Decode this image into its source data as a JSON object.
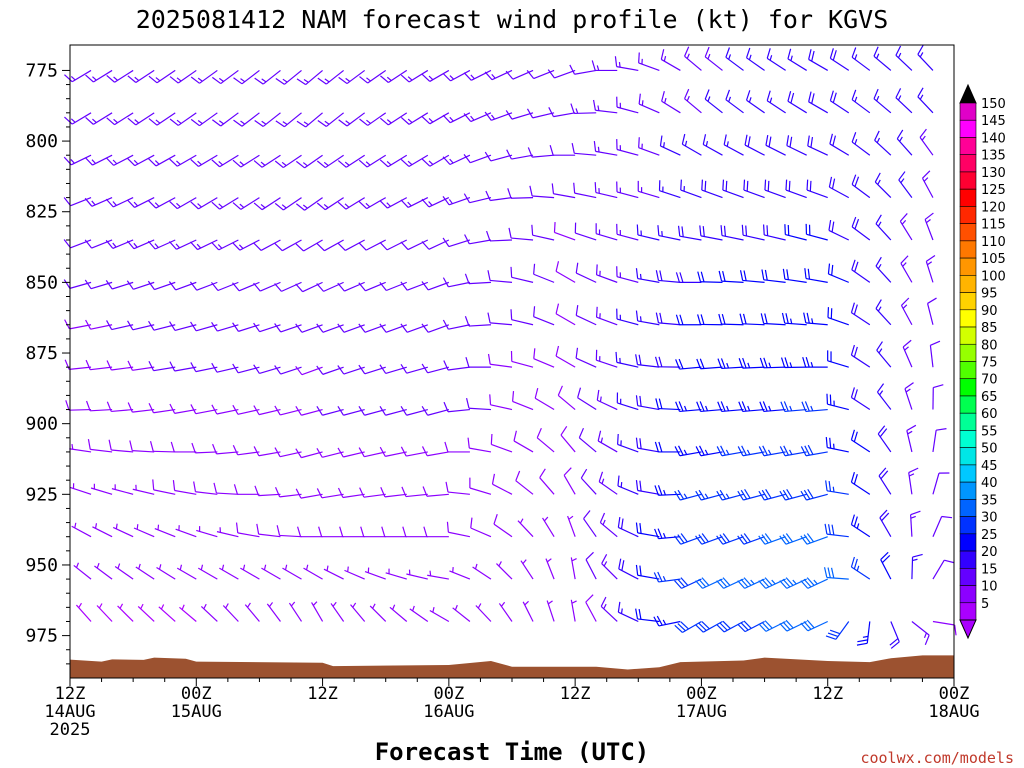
{
  "chart_data": {
    "type": "wind_profile",
    "title": "2025081412 NAM forecast wind profile (kt) for KGVS",
    "xlabel": "Forecast Time (UTC)",
    "credit": "coolwx.com/models",
    "yaxis": {
      "label": "",
      "ylim": [
        766,
        990
      ],
      "direction": "pressure decreasing upward",
      "ticks": [
        "775",
        "800",
        "825",
        "850",
        "875",
        "900",
        "925",
        "950",
        "975"
      ]
    },
    "xaxis": {
      "range_hours": [
        0,
        84
      ],
      "ticks": [
        {
          "hour": 0,
          "l1": "12Z",
          "l2": "14AUG",
          "l3": "2025"
        },
        {
          "hour": 12,
          "l1": "00Z",
          "l2": "15AUG",
          "l3": ""
        },
        {
          "hour": 24,
          "l1": "12Z",
          "l2": "",
          "l3": ""
        },
        {
          "hour": 36,
          "l1": "00Z",
          "l2": "16AUG",
          "l3": ""
        },
        {
          "hour": 48,
          "l1": "12Z",
          "l2": "",
          "l3": ""
        },
        {
          "hour": 60,
          "l1": "00Z",
          "l2": "17AUG",
          "l3": ""
        },
        {
          "hour": 72,
          "l1": "12Z",
          "l2": "",
          "l3": ""
        },
        {
          "hour": 84,
          "l1": "00Z",
          "l2": "18AUG",
          "l3": ""
        }
      ]
    },
    "colorbar": {
      "unit": "kt",
      "levels": [
        "150",
        "145",
        "140",
        "135",
        "130",
        "125",
        "120",
        "115",
        "110",
        "105",
        "100",
        "95",
        "90",
        "85",
        "80",
        "75",
        "70",
        "65",
        "60",
        "55",
        "50",
        "45",
        "40",
        "35",
        "30",
        "25",
        "20",
        "15",
        "10",
        "5"
      ],
      "colors": [
        "#e000c8",
        "#ff00ff",
        "#ff0096",
        "#ff0064",
        "#ff0032",
        "#ff0000",
        "#ff2800",
        "#ff5000",
        "#ff7800",
        "#ff9600",
        "#ffb400",
        "#ffd200",
        "#ffff00",
        "#d2ff00",
        "#96ff00",
        "#50ff00",
        "#00ff00",
        "#00ff50",
        "#00ff96",
        "#00ffd2",
        "#00e6e6",
        "#00c8ff",
        "#0096ff",
        "#0064ff",
        "#0032ff",
        "#0000ff",
        "#3200ff",
        "#6400ff",
        "#8c00ff",
        "#aa00ff"
      ]
    },
    "surface_pressure": [
      {
        "hour": 0,
        "p": 983.5
      },
      {
        "hour": 3,
        "p": 984.2
      },
      {
        "hour": 4,
        "p": 983.4
      },
      {
        "hour": 7,
        "p": 983.6
      },
      {
        "hour": 8,
        "p": 982.8
      },
      {
        "hour": 11,
        "p": 983.2
      },
      {
        "hour": 12,
        "p": 984.2
      },
      {
        "hour": 24,
        "p": 984.6
      },
      {
        "hour": 25,
        "p": 985.8
      },
      {
        "hour": 36,
        "p": 985.4
      },
      {
        "hour": 40,
        "p": 984.0
      },
      {
        "hour": 42,
        "p": 986.0
      },
      {
        "hour": 50,
        "p": 986.0
      },
      {
        "hour": 53,
        "p": 987.0
      },
      {
        "hour": 56,
        "p": 986.2
      },
      {
        "hour": 58,
        "p": 984.4
      },
      {
        "hour": 64,
        "p": 983.8
      },
      {
        "hour": 66,
        "p": 982.8
      },
      {
        "hour": 72,
        "p": 984.0
      },
      {
        "hour": 76,
        "p": 984.4
      },
      {
        "hour": 78,
        "p": 983.0
      },
      {
        "hour": 81,
        "p": 982.0
      },
      {
        "hour": 84,
        "p": 982.0
      }
    ],
    "barb_pressures": [
      775,
      790,
      805,
      820,
      835,
      850,
      865,
      880,
      895,
      910,
      925,
      940,
      955,
      970,
      985
    ],
    "barb_hours_start": 0,
    "barb_hours_end": 84,
    "barb_hours_step": 2,
    "barbs_by_hour": {
      "0": {
        "dir": [
          240,
          240,
          245,
          250,
          250,
          255,
          260,
          265,
          270,
          280,
          290,
          300,
          310,
          320,
          330
        ],
        "speed": [
          15,
          15,
          13,
          12,
          12,
          10,
          9,
          8,
          7,
          7,
          6,
          6,
          5,
          5,
          5
        ]
      },
      "12": {
        "dir": [
          235,
          235,
          240,
          240,
          245,
          250,
          255,
          260,
          260,
          270,
          280,
          290,
          300,
          310,
          320
        ],
        "speed": [
          15,
          15,
          15,
          14,
          13,
          12,
          12,
          11,
          10,
          9,
          8,
          7,
          6,
          5,
          5
        ]
      },
      "24": {
        "dir": [
          230,
          230,
          235,
          235,
          240,
          245,
          250,
          250,
          255,
          255,
          260,
          270,
          300,
          330,
          340
        ],
        "speed": [
          14,
          14,
          13,
          13,
          12,
          12,
          11,
          10,
          10,
          9,
          9,
          8,
          7,
          6,
          5
        ]
      },
      "36": {
        "dir": [
          240,
          240,
          240,
          245,
          245,
          250,
          250,
          255,
          255,
          260,
          265,
          270,
          280,
          300,
          320
        ],
        "speed": [
          13,
          13,
          13,
          13,
          12,
          12,
          12,
          11,
          11,
          10,
          9,
          8,
          7,
          6,
          5
        ]
      },
      "48": {
        "dir": [
          250,
          260,
          270,
          280,
          290,
          300,
          300,
          300,
          310,
          320,
          330,
          340,
          350,
          350,
          350
        ],
        "speed": [
          12,
          12,
          11,
          11,
          10,
          10,
          10,
          9,
          9,
          8,
          8,
          7,
          7,
          6,
          6
        ]
      },
      "60": {
        "dir": [
          310,
          310,
          300,
          290,
          280,
          270,
          270,
          265,
          265,
          260,
          255,
          250,
          245,
          240,
          240
        ],
        "speed": [
          14,
          15,
          16,
          17,
          18,
          20,
          21,
          22,
          23,
          24,
          26,
          28,
          30,
          28,
          24
        ]
      },
      "72": {
        "dir": [
          300,
          300,
          295,
          290,
          285,
          280,
          275,
          270,
          265,
          260,
          255,
          250,
          245,
          245,
          250
        ],
        "speed": [
          18,
          18,
          19,
          20,
          21,
          22,
          23,
          24,
          26,
          28,
          30,
          32,
          35,
          32,
          28
        ]
      },
      "84": {
        "dir": [
          320,
          320,
          330,
          340,
          350,
          355,
          360,
          10,
          20,
          30,
          40,
          50,
          60,
          70,
          80
        ],
        "speed": [
          15,
          15,
          14,
          13,
          12,
          11,
          10,
          9,
          8,
          7,
          7,
          6,
          6,
          5,
          5
        ]
      }
    }
  }
}
